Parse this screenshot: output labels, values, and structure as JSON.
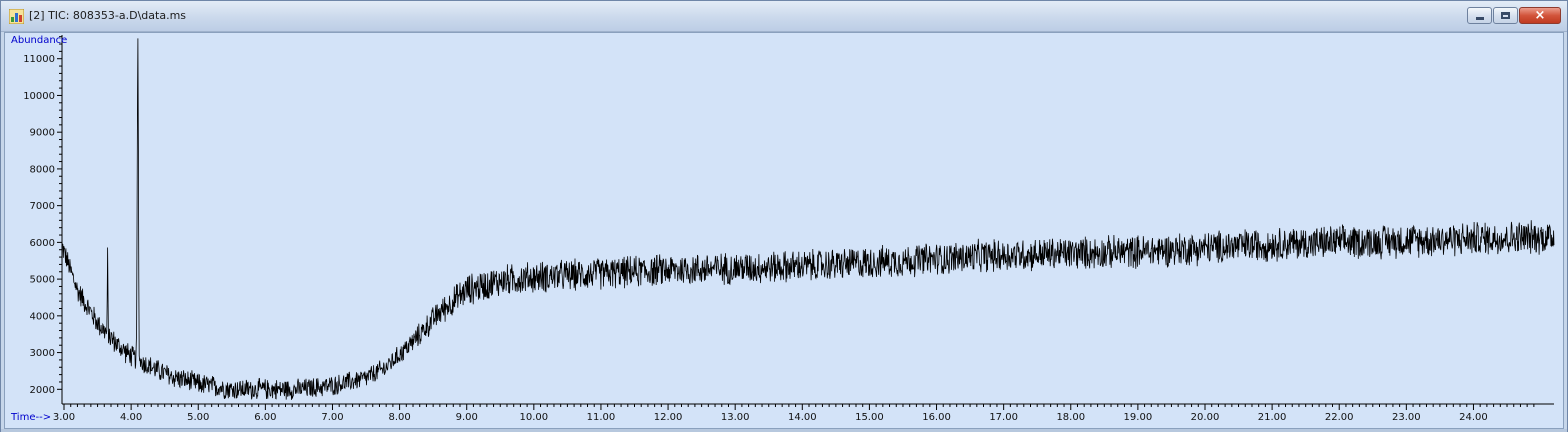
{
  "window": {
    "title": "[2] TIC: 808353-a.D\\data.ms",
    "icon": "chromatogram-app-icon",
    "controls": {
      "minimize": "minimize-icon",
      "maximize": "maximize-icon",
      "close": "×"
    }
  },
  "chart_data": {
    "type": "line",
    "title": "",
    "ylabel": "Abundance",
    "xlabel": "Time-->",
    "xlim": [
      2.97,
      25.2
    ],
    "ylim": [
      1600,
      11700
    ],
    "grid": false,
    "legend": "none",
    "line_color": "#000000",
    "background_color": "#d3e3f8",
    "x_ticks": [
      3.0,
      4.0,
      5.0,
      6.0,
      7.0,
      8.0,
      9.0,
      10.0,
      11.0,
      12.0,
      13.0,
      14.0,
      15.0,
      16.0,
      17.0,
      18.0,
      19.0,
      20.0,
      21.0,
      22.0,
      23.0,
      24.0
    ],
    "x_tick_labels": [
      "3.00",
      "4.00",
      "5.00",
      "6.00",
      "7.00",
      "8.00",
      "9.00",
      "10.00",
      "11.00",
      "12.00",
      "13.00",
      "14.00",
      "15.00",
      "16.00",
      "17.00",
      "18.00",
      "19.00",
      "20.00",
      "21.00",
      "22.00",
      "23.00",
      "24.00"
    ],
    "y_ticks": [
      2000,
      3000,
      4000,
      5000,
      6000,
      7000,
      8000,
      9000,
      10000,
      11000
    ],
    "y_tick_labels": [
      "2000",
      "3000",
      "4000",
      "5000",
      "6000",
      "7000",
      "8000",
      "9000",
      "10000",
      "11000"
    ],
    "baseline": {
      "x": [
        2.97,
        3.2,
        3.5,
        3.8,
        4.0,
        4.3,
        4.6,
        5.0,
        5.5,
        6.0,
        6.5,
        7.0,
        7.5,
        7.8,
        8.2,
        8.6,
        9.0,
        9.5,
        10.0,
        11.0,
        12.0,
        13.0,
        14.0,
        15.0,
        16.0,
        17.0,
        18.0,
        19.0,
        20.0,
        21.0,
        22.0,
        23.0,
        24.0,
        25.2
      ],
      "y": [
        5900,
        4700,
        3800,
        3200,
        2900,
        2600,
        2350,
        2150,
        2000,
        2000,
        2000,
        2100,
        2300,
        2600,
        3300,
        4100,
        4700,
        4950,
        5050,
        5150,
        5250,
        5300,
        5350,
        5450,
        5550,
        5650,
        5700,
        5750,
        5850,
        5950,
        6000,
        6050,
        6100,
        6150
      ]
    },
    "noise_amplitude": [
      {
        "x": 2.97,
        "amp": 350
      },
      {
        "x": 8.0,
        "amp": 300
      },
      {
        "x": 9.0,
        "amp": 480
      },
      {
        "x": 25.2,
        "amp": 520
      }
    ],
    "peaks": [
      {
        "x": 3.65,
        "y": 5800
      },
      {
        "x": 4.1,
        "y": 11450
      }
    ]
  }
}
